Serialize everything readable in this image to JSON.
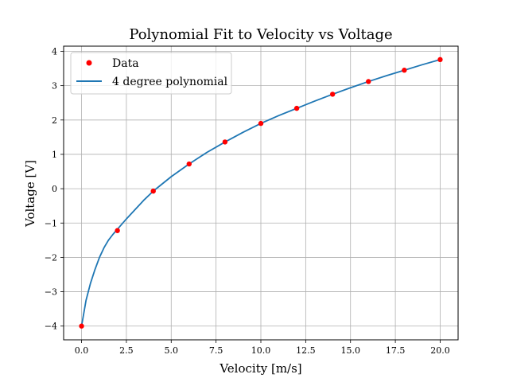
{
  "chart_data": {
    "type": "scatter",
    "title": "Polynomial Fit to Velocity vs Voltage",
    "xlabel": "Velocity [m/s]",
    "ylabel": "Voltage [V]",
    "xlim": [
      -1.0,
      21.0
    ],
    "ylim": [
      -4.4,
      4.15
    ],
    "grid": true,
    "legend_position": "upper-left",
    "x_ticks": [
      0,
      2.5,
      5,
      7.5,
      10,
      12.5,
      15,
      17.5,
      20
    ],
    "x_tick_labels": [
      "0.0",
      "2.5",
      "5.0",
      "7.5",
      "10.0",
      "12.5",
      "15.0",
      "17.5",
      "20.0"
    ],
    "y_ticks": [
      -4,
      -3,
      -2,
      -1,
      0,
      1,
      2,
      3,
      4
    ],
    "y_tick_labels": [
      "−4",
      "−3",
      "−2",
      "−1",
      "0",
      "1",
      "2",
      "3",
      "4"
    ],
    "series": [
      {
        "name": "Data",
        "kind": "scatter",
        "color": "#ff0000",
        "x": [
          0,
          2,
          4,
          6,
          8,
          10,
          12,
          14,
          16,
          18,
          20
        ],
        "y": [
          -4.0,
          -1.22,
          -0.07,
          0.72,
          1.36,
          1.9,
          2.34,
          2.75,
          3.12,
          3.45,
          3.76
        ]
      },
      {
        "name": "4 degree polynomial",
        "kind": "line",
        "color": "#1f77b4",
        "x": [
          0,
          0.25,
          0.5,
          0.75,
          1,
          1.25,
          1.5,
          1.75,
          2,
          2.5,
          3,
          3.5,
          4,
          5,
          6,
          7,
          8,
          9,
          10,
          11,
          12,
          13,
          14,
          15,
          16,
          17,
          18,
          19,
          20
        ],
        "y": [
          -4.0,
          -3.25,
          -2.75,
          -2.35,
          -2.0,
          -1.72,
          -1.5,
          -1.33,
          -1.18,
          -0.88,
          -0.6,
          -0.32,
          -0.07,
          0.35,
          0.72,
          1.06,
          1.36,
          1.64,
          1.9,
          2.13,
          2.34,
          2.55,
          2.75,
          2.94,
          3.12,
          3.29,
          3.45,
          3.61,
          3.76
        ]
      }
    ]
  }
}
